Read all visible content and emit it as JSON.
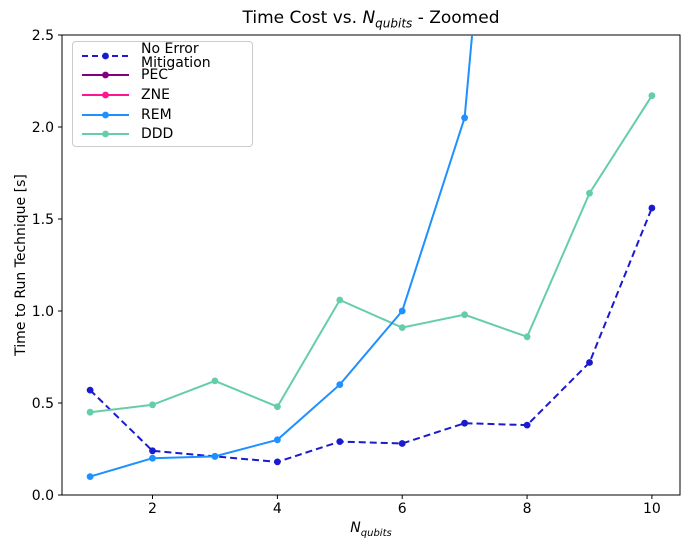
{
  "chart_data": {
    "type": "line",
    "title": "Time Cost vs. N_qubits - Zoomed",
    "title_parts": {
      "prefix": "Time Cost vs. ",
      "var": "N",
      "var_sub": "qubits",
      "suffix": " - Zoomed"
    },
    "xlabel_parts": {
      "var": "N",
      "var_sub": "qubits"
    },
    "ylabel": "Time to Run Technique [s]",
    "x": [
      1,
      2,
      3,
      4,
      5,
      6,
      7,
      8,
      9,
      10
    ],
    "xlim": [
      0.55,
      10.45
    ],
    "ylim": [
      0.0,
      2.5
    ],
    "xticks": [
      2,
      4,
      6,
      8,
      10
    ],
    "ytick_labels": [
      "0.0",
      "0.5",
      "1.0",
      "1.5",
      "2.0",
      "2.5"
    ],
    "grid": false,
    "legend": {
      "position": "upper-left",
      "border_color": "#cbcbcb",
      "background": "#ffffff"
    },
    "series": [
      {
        "name": "No Error Mitigation",
        "color": "#1A1ACF",
        "linestyle": "dashed",
        "marker": "circle",
        "values": [
          0.57,
          0.24,
          0.21,
          0.18,
          0.29,
          0.28,
          0.39,
          0.38,
          0.72,
          1.56
        ]
      },
      {
        "name": "PEC",
        "color": "#800080",
        "linestyle": "solid",
        "marker": "circle",
        "visible_in_plot": false,
        "values": [
          null,
          null,
          null,
          null,
          null,
          null,
          null,
          null,
          null,
          null
        ]
      },
      {
        "name": "ZNE",
        "color": "#FF1493",
        "linestyle": "solid",
        "marker": "circle",
        "visible_in_plot": false,
        "values": [
          null,
          null,
          null,
          null,
          null,
          null,
          null,
          null,
          null,
          null
        ]
      },
      {
        "name": "REM",
        "color": "#1E90FF",
        "linestyle": "solid",
        "marker": "circle",
        "line_exits_top_at_x": 7.12,
        "values": [
          0.1,
          0.2,
          0.21,
          0.3,
          0.6,
          1.0,
          2.05,
          null,
          null,
          null
        ]
      },
      {
        "name": "DDD",
        "color": "#66CDAA",
        "linestyle": "solid",
        "marker": "circle",
        "values": [
          0.45,
          0.49,
          0.62,
          0.48,
          1.06,
          0.91,
          0.98,
          0.86,
          1.64,
          2.17
        ]
      }
    ]
  }
}
